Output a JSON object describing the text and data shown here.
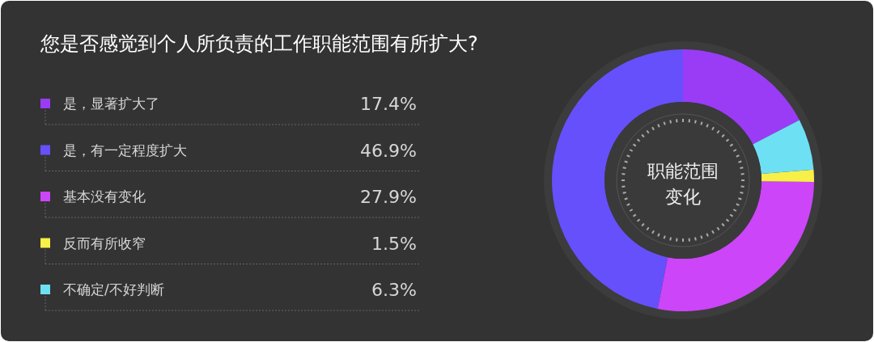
{
  "chart_data": {
    "type": "donut",
    "title": "您是否感觉到个人所负责的工作职能范围有所扩大?",
    "categories": [
      "是，显著扩大了",
      "是，有一定程度扩大",
      "基本没有变化",
      "反而有所收窄",
      "不确定/不好判断"
    ],
    "values": [
      17.4,
      46.9,
      27.9,
      1.5,
      6.3
    ],
    "colors": [
      "#9a3cf6",
      "#6650fb",
      "#cc45f8",
      "#f8f048",
      "#6ee0f4"
    ],
    "value_labels": [
      "17.4%",
      "46.9%",
      "27.9%",
      "1.5%",
      "6.3%"
    ],
    "legend": "left",
    "annotations": [
      "职能范围变化"
    ]
  }
}
